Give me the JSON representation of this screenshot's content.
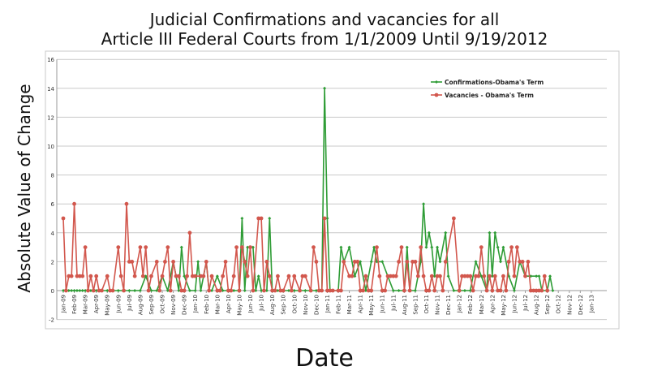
{
  "chart_data": {
    "type": "line",
    "title": [
      "Judicial Confirmations and vacancies for all",
      "Article III Federal Courts from 1/1/2009 Until 9/19/2012"
    ],
    "xlabel": "Date",
    "ylabel": "Absolute Value of Change",
    "ylim": [
      -2,
      16
    ],
    "yticks": [
      "-2",
      "0",
      "2",
      "4",
      "6",
      "8",
      "10",
      "12",
      "14",
      "16"
    ],
    "categories": [
      "Jan-09",
      "Feb-09",
      "Mar-09",
      "Apr-09",
      "May-09",
      "Jun-09",
      "Jul-09",
      "Aug-09",
      "Sep-09",
      "Oct-09",
      "Nov-09",
      "Dec-09",
      "Jan-10",
      "Feb-10",
      "Mar-10",
      "Apr-10",
      "May-10",
      "Jun-10",
      "Jul-10",
      "Aug-10",
      "Sep-10",
      "Oct-10",
      "Nov-10",
      "Dec-10",
      "Jan-11",
      "Feb-11",
      "Mar-11",
      "Apr-11",
      "May-11",
      "Jun-11",
      "Jul-11",
      "Aug-11",
      "Sep-11",
      "Oct-11",
      "Nov-11",
      "Dec-11",
      "Jan-12",
      "Feb-12",
      "Mar-12",
      "Apr-12",
      "May-12",
      "Jun-12",
      "Jul-12",
      "Aug-12",
      "Sep-12",
      "Oct-12",
      "Nov-12",
      "Dec-12",
      "Jan-13"
    ],
    "grid": true,
    "legend_position": "top-right",
    "series": [
      {
        "name": "Confirmations-Obama's Term",
        "color": "#2e9c35",
        "marker": "diamond",
        "points": [
          [
            0.0,
            0
          ],
          [
            0.25,
            0
          ],
          [
            0.5,
            0
          ],
          [
            0.75,
            0
          ],
          [
            1.0,
            0
          ],
          [
            1.25,
            0
          ],
          [
            1.5,
            0
          ],
          [
            1.75,
            0
          ],
          [
            2.0,
            0
          ],
          [
            2.25,
            0
          ],
          [
            2.5,
            0
          ],
          [
            3.0,
            0
          ],
          [
            3.5,
            0
          ],
          [
            4.0,
            0
          ],
          [
            4.5,
            0
          ],
          [
            5.0,
            0
          ],
          [
            5.5,
            0
          ],
          [
            6.0,
            0
          ],
          [
            6.5,
            0
          ],
          [
            7.0,
            0
          ],
          [
            7.5,
            1
          ],
          [
            8.0,
            0
          ],
          [
            8.5,
            0
          ],
          [
            9.0,
            1
          ],
          [
            9.5,
            0
          ],
          [
            10.0,
            2
          ],
          [
            10.5,
            0
          ],
          [
            10.75,
            3
          ],
          [
            11.0,
            1
          ],
          [
            11.5,
            0
          ],
          [
            12.0,
            0
          ],
          [
            12.25,
            2
          ],
          [
            12.5,
            0
          ],
          [
            13.0,
            2
          ],
          [
            13.25,
            0
          ],
          [
            13.5,
            0
          ],
          [
            14.0,
            1
          ],
          [
            14.5,
            0
          ],
          [
            15.0,
            0
          ],
          [
            15.5,
            0
          ],
          [
            16.0,
            0
          ],
          [
            16.25,
            5
          ],
          [
            16.5,
            0
          ],
          [
            16.75,
            3
          ],
          [
            17.0,
            3
          ],
          [
            17.25,
            3
          ],
          [
            17.5,
            0
          ],
          [
            17.75,
            1
          ],
          [
            18.0,
            0
          ],
          [
            18.5,
            0
          ],
          [
            18.75,
            5
          ],
          [
            19.0,
            0
          ],
          [
            19.25,
            0
          ],
          [
            19.5,
            0
          ],
          [
            20.0,
            0
          ],
          [
            20.5,
            0
          ],
          [
            21.0,
            0
          ],
          [
            21.5,
            0
          ],
          [
            22.0,
            0
          ],
          [
            22.5,
            0
          ],
          [
            23.0,
            0
          ],
          [
            23.5,
            0
          ],
          [
            23.75,
            14
          ],
          [
            24.0,
            5
          ],
          [
            24.25,
            0
          ],
          [
            24.5,
            0
          ],
          [
            25.0,
            0
          ],
          [
            25.25,
            3
          ],
          [
            25.5,
            2
          ],
          [
            26.0,
            3
          ],
          [
            26.5,
            1
          ],
          [
            27.0,
            2
          ],
          [
            27.5,
            0
          ],
          [
            28.0,
            2
          ],
          [
            28.25,
            3
          ],
          [
            28.5,
            2
          ],
          [
            29.0,
            2
          ],
          [
            29.5,
            1
          ],
          [
            30.0,
            0
          ],
          [
            30.5,
            0
          ],
          [
            31.0,
            0
          ],
          [
            31.25,
            3
          ],
          [
            31.5,
            0
          ],
          [
            32.0,
            0
          ],
          [
            32.5,
            2
          ],
          [
            32.75,
            6
          ],
          [
            33.0,
            3
          ],
          [
            33.25,
            4
          ],
          [
            33.5,
            3
          ],
          [
            33.75,
            1
          ],
          [
            34.0,
            3
          ],
          [
            34.25,
            2
          ],
          [
            34.75,
            4
          ],
          [
            35.0,
            1
          ],
          [
            35.5,
            0
          ],
          [
            36.0,
            0
          ],
          [
            36.5,
            0
          ],
          [
            37.0,
            0
          ],
          [
            37.5,
            2
          ],
          [
            38.0,
            1
          ],
          [
            38.5,
            0
          ],
          [
            38.75,
            4
          ],
          [
            39.0,
            1
          ],
          [
            39.25,
            4
          ],
          [
            39.5,
            3
          ],
          [
            39.75,
            2
          ],
          [
            40.0,
            3
          ],
          [
            40.5,
            1
          ],
          [
            41.0,
            0
          ],
          [
            41.5,
            2
          ],
          [
            42.0,
            1
          ],
          [
            42.5,
            1
          ],
          [
            43.0,
            1
          ],
          [
            43.25,
            1
          ],
          [
            43.5,
            0
          ],
          [
            44.0,
            0
          ],
          [
            44.25,
            1
          ],
          [
            44.5,
            0
          ]
        ]
      },
      {
        "name": "Vacancies - Obama's Term",
        "color": "#d2574d",
        "marker": "circle",
        "points": [
          [
            0.0,
            5
          ],
          [
            0.25,
            0
          ],
          [
            0.5,
            1
          ],
          [
            0.75,
            1
          ],
          [
            1.0,
            6
          ],
          [
            1.25,
            1
          ],
          [
            1.5,
            1
          ],
          [
            1.75,
            1
          ],
          [
            2.0,
            3
          ],
          [
            2.25,
            0
          ],
          [
            2.5,
            1
          ],
          [
            2.75,
            0
          ],
          [
            3.0,
            1
          ],
          [
            3.25,
            0
          ],
          [
            3.5,
            0
          ],
          [
            4.0,
            1
          ],
          [
            4.25,
            0
          ],
          [
            4.5,
            0
          ],
          [
            5.0,
            3
          ],
          [
            5.25,
            1
          ],
          [
            5.5,
            0
          ],
          [
            5.75,
            6
          ],
          [
            6.0,
            2
          ],
          [
            6.25,
            2
          ],
          [
            6.5,
            1
          ],
          [
            7.0,
            3
          ],
          [
            7.25,
            1
          ],
          [
            7.5,
            3
          ],
          [
            7.75,
            0
          ],
          [
            8.0,
            1
          ],
          [
            8.5,
            2
          ],
          [
            8.75,
            0
          ],
          [
            9.0,
            1
          ],
          [
            9.25,
            2
          ],
          [
            9.5,
            3
          ],
          [
            9.75,
            0
          ],
          [
            10.0,
            2
          ],
          [
            10.25,
            1
          ],
          [
            10.5,
            1
          ],
          [
            10.75,
            0
          ],
          [
            11.0,
            0
          ],
          [
            11.25,
            1
          ],
          [
            11.5,
            4
          ],
          [
            11.75,
            1
          ],
          [
            12.0,
            1
          ],
          [
            12.5,
            1
          ],
          [
            12.75,
            1
          ],
          [
            13.0,
            2
          ],
          [
            13.25,
            0
          ],
          [
            13.5,
            1
          ],
          [
            14.0,
            0
          ],
          [
            14.25,
            0
          ],
          [
            14.5,
            1
          ],
          [
            14.75,
            2
          ],
          [
            15.0,
            0
          ],
          [
            15.25,
            0
          ],
          [
            15.5,
            1
          ],
          [
            15.75,
            3
          ],
          [
            16.0,
            0
          ],
          [
            16.25,
            3
          ],
          [
            16.5,
            2
          ],
          [
            16.75,
            1
          ],
          [
            17.0,
            3
          ],
          [
            17.25,
            0
          ],
          [
            17.75,
            5
          ],
          [
            18.0,
            5
          ],
          [
            18.25,
            0
          ],
          [
            18.5,
            2
          ],
          [
            18.75,
            1
          ],
          [
            19.0,
            0
          ],
          [
            19.25,
            0
          ],
          [
            19.5,
            1
          ],
          [
            19.75,
            0
          ],
          [
            20.0,
            0
          ],
          [
            20.5,
            1
          ],
          [
            20.75,
            0
          ],
          [
            21.0,
            1
          ],
          [
            21.5,
            0
          ],
          [
            21.75,
            1
          ],
          [
            22.0,
            1
          ],
          [
            22.5,
            0
          ],
          [
            22.75,
            3
          ],
          [
            23.0,
            2
          ],
          [
            23.25,
            0
          ],
          [
            23.5,
            0
          ],
          [
            23.75,
            5
          ],
          [
            24.0,
            0
          ],
          [
            24.25,
            0
          ],
          [
            24.5,
            0
          ],
          [
            25.0,
            0
          ],
          [
            25.25,
            0
          ],
          [
            25.5,
            2
          ],
          [
            26.0,
            1
          ],
          [
            26.25,
            1
          ],
          [
            26.5,
            2
          ],
          [
            26.75,
            2
          ],
          [
            27.0,
            0
          ],
          [
            27.25,
            0
          ],
          [
            27.5,
            1
          ],
          [
            27.75,
            0
          ],
          [
            28.0,
            0
          ],
          [
            28.5,
            3
          ],
          [
            28.75,
            1
          ],
          [
            29.0,
            0
          ],
          [
            29.25,
            0
          ],
          [
            29.5,
            1
          ],
          [
            29.75,
            1
          ],
          [
            30.0,
            1
          ],
          [
            30.25,
            1
          ],
          [
            30.5,
            2
          ],
          [
            30.75,
            3
          ],
          [
            31.0,
            0
          ],
          [
            31.25,
            2
          ],
          [
            31.5,
            0
          ],
          [
            31.75,
            2
          ],
          [
            32.0,
            2
          ],
          [
            32.25,
            1
          ],
          [
            32.5,
            3
          ],
          [
            32.75,
            1
          ],
          [
            33.0,
            0
          ],
          [
            33.25,
            0
          ],
          [
            33.5,
            1
          ],
          [
            33.75,
            0
          ],
          [
            34.0,
            1
          ],
          [
            34.25,
            1
          ],
          [
            34.5,
            0
          ],
          [
            34.75,
            2
          ],
          [
            35.5,
            5
          ],
          [
            36.0,
            0
          ],
          [
            36.25,
            1
          ],
          [
            36.5,
            1
          ],
          [
            36.75,
            1
          ],
          [
            37.0,
            1
          ],
          [
            37.25,
            0
          ],
          [
            37.5,
            1
          ],
          [
            37.75,
            1
          ],
          [
            38.0,
            3
          ],
          [
            38.25,
            1
          ],
          [
            38.5,
            0
          ],
          [
            38.75,
            1
          ],
          [
            39.0,
            0
          ],
          [
            39.25,
            1
          ],
          [
            39.5,
            0
          ],
          [
            39.75,
            0
          ],
          [
            40.0,
            1
          ],
          [
            40.25,
            0
          ],
          [
            40.5,
            2
          ],
          [
            40.75,
            3
          ],
          [
            41.0,
            1
          ],
          [
            41.25,
            3
          ],
          [
            41.5,
            2
          ],
          [
            41.75,
            2
          ],
          [
            42.0,
            1
          ],
          [
            42.25,
            2
          ],
          [
            42.5,
            0
          ],
          [
            42.75,
            0
          ],
          [
            43.0,
            0
          ],
          [
            43.25,
            0
          ],
          [
            43.5,
            0
          ],
          [
            43.75,
            1
          ],
          [
            44.0,
            0
          ]
        ]
      }
    ]
  }
}
